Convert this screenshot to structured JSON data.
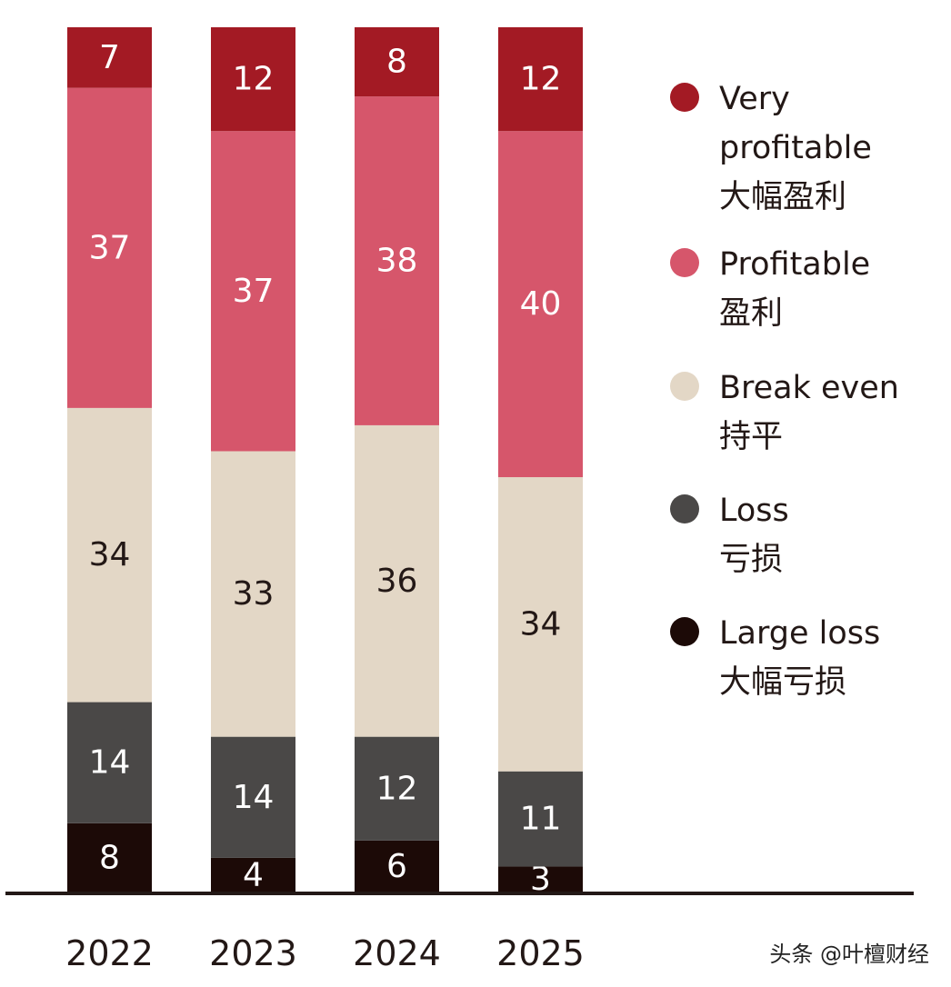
{
  "chart_data": {
    "type": "bar",
    "stacked": true,
    "categories": [
      "2022",
      "2023",
      "2024",
      "2025"
    ],
    "ylim": [
      0,
      100
    ],
    "grid": false,
    "legend_position": "right",
    "series": [
      {
        "name": "Large loss",
        "name_zh": "大幅亏损",
        "color": "#1c0a07",
        "label_color": "#ffffff",
        "values": [
          8,
          4,
          6,
          3
        ]
      },
      {
        "name": "Loss",
        "name_zh": "亏损",
        "color": "#4a4847",
        "label_color": "#ffffff",
        "values": [
          14,
          14,
          12,
          11
        ]
      },
      {
        "name": "Break even",
        "name_zh": "持平",
        "color": "#e3d7c6",
        "label_color": "#231816",
        "values": [
          34,
          33,
          36,
          34
        ]
      },
      {
        "name": "Profitable",
        "name_zh": "盈利",
        "color": "#d6566b",
        "label_color": "#ffffff",
        "values": [
          37,
          37,
          38,
          40
        ]
      },
      {
        "name": "Very profitable",
        "name_zh": "大幅盈利",
        "name_lines": [
          "Very",
          "profitable"
        ],
        "color": "#a31a24",
        "label_color": "#ffffff",
        "values": [
          7,
          12,
          8,
          12
        ]
      }
    ]
  },
  "watermark": "头条 @叶檀财经"
}
